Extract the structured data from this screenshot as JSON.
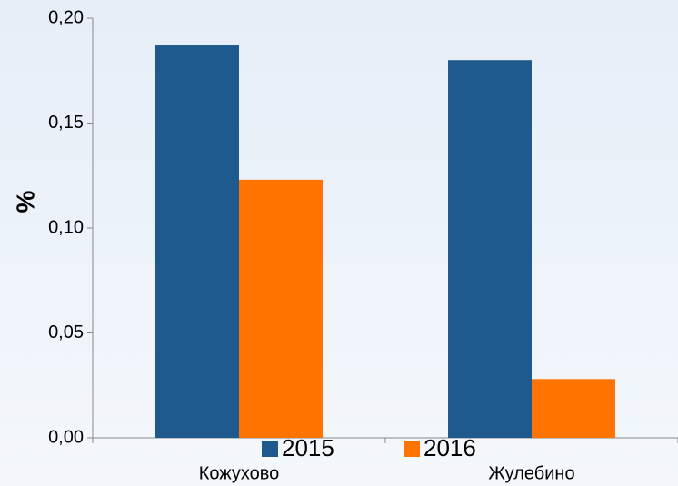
{
  "chart_data": {
    "type": "bar",
    "y_label": "%",
    "categories": [
      "Кожухово",
      "Жулебино"
    ],
    "series": [
      {
        "name": "2015",
        "color": "#1f5a8f",
        "values": [
          0.187,
          0.18
        ]
      },
      {
        "name": "2016",
        "color": "#ff7300",
        "values": [
          0.123,
          0.028
        ]
      }
    ],
    "ylim": [
      0,
      0.2
    ],
    "yticks": [
      {
        "value": 0,
        "label": "0,00"
      },
      {
        "value": 0.05,
        "label": "0,05"
      },
      {
        "value": 0.1,
        "label": "0,10"
      },
      {
        "value": 0.15,
        "label": "0,15"
      },
      {
        "value": 0.2,
        "label": "0,20"
      }
    ],
    "legend": "bottom"
  }
}
